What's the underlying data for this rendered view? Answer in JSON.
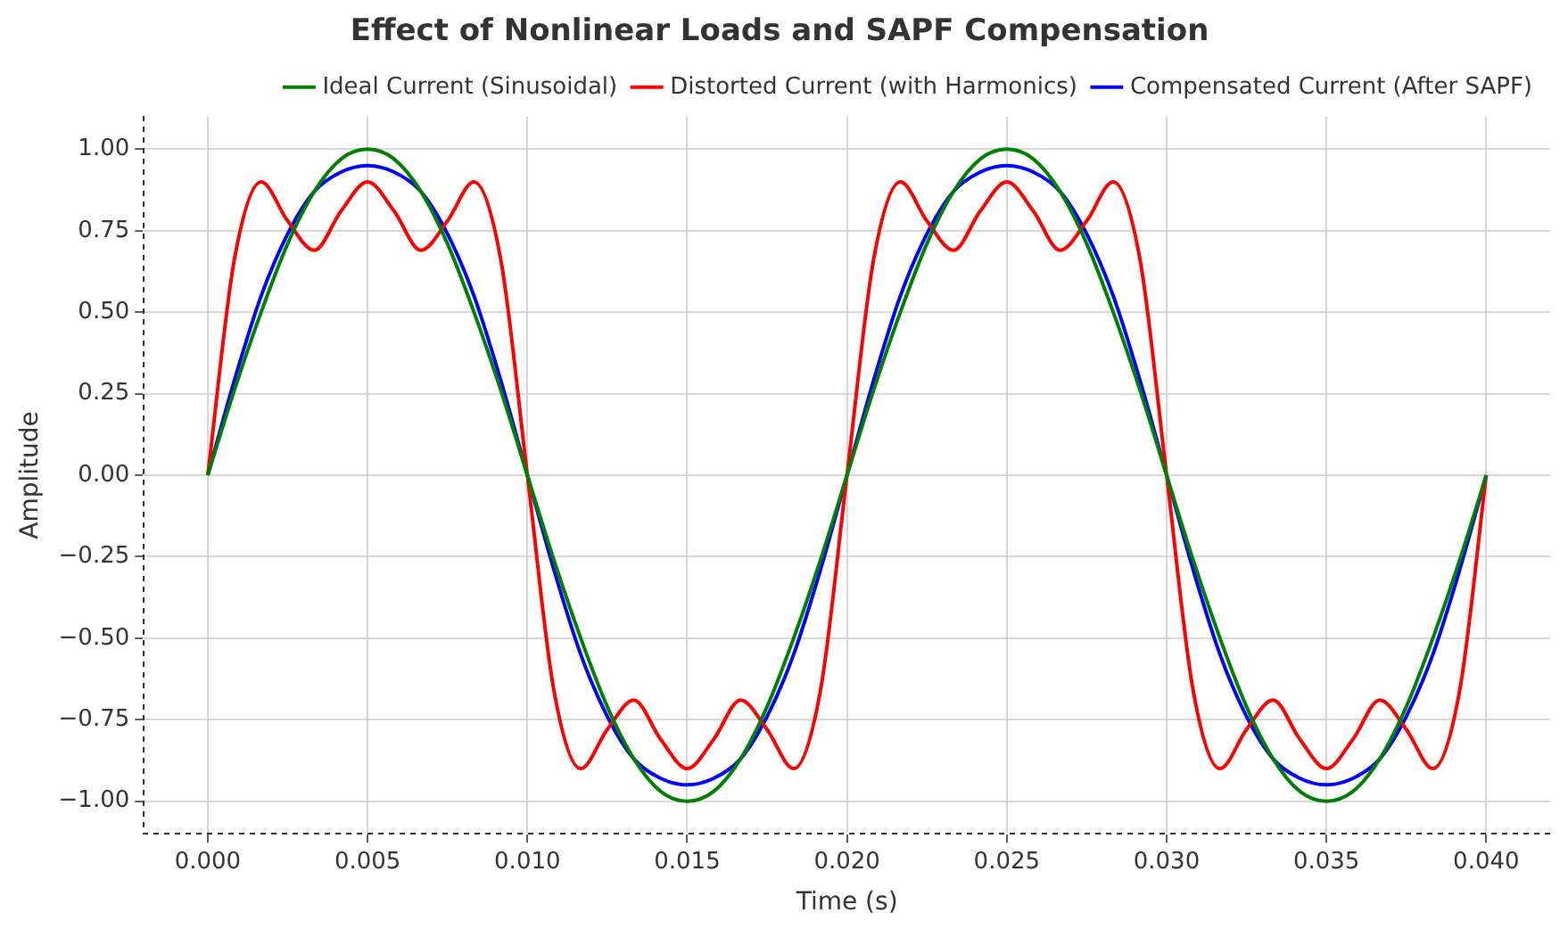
{
  "chart_data": {
    "type": "line",
    "title": "Effect of Nonlinear Loads and SAPF Compensation",
    "xlabel": "Time (s)",
    "ylabel": "Amplitude",
    "x": [
      0,
      0.00083,
      0.00167,
      0.0025,
      0.00333,
      0.00417,
      0.005,
      0.00583,
      0.00667,
      0.0075,
      0.00833,
      0.00917,
      0.01,
      0.01083,
      0.01167,
      0.0125,
      0.01333,
      0.01417,
      0.015,
      0.01583,
      0.01667,
      0.0175,
      0.01833,
      0.01917,
      0.02,
      0.02083,
      0.02167,
      0.0225,
      0.02333,
      0.02417,
      0.025,
      0.02583,
      0.02667,
      0.0275,
      0.02833,
      0.02917,
      0.03,
      0.03083,
      0.03167,
      0.0325,
      0.03333,
      0.03417,
      0.035,
      0.03583,
      0.03667,
      0.0375,
      0.03833,
      0.03917,
      0.04
    ],
    "series": [
      {
        "name": "Ideal Current (Sinusoidal)",
        "color": "#008000",
        "values": [
          0,
          0.26,
          0.5,
          0.71,
          0.87,
          0.97,
          1,
          0.97,
          0.87,
          0.71,
          0.5,
          0.26,
          0,
          -0.26,
          -0.5,
          -0.71,
          -0.87,
          -0.97,
          -1,
          -0.97,
          -0.87,
          -0.71,
          -0.5,
          -0.26,
          0,
          0.26,
          0.5,
          0.71,
          0.87,
          0.97,
          1,
          0.97,
          0.87,
          0.71,
          0.5,
          0.26,
          0,
          -0.26,
          -0.5,
          -0.71,
          -0.87,
          -0.97,
          -1,
          -0.97,
          -0.87,
          -0.71,
          -0.5,
          -0.26,
          0
        ]
      },
      {
        "name": "Distorted Current (with Harmonics)",
        "color": "#ff0000",
        "values": [
          0,
          0.66,
          0.9,
          0.78,
          0.69,
          0.81,
          0.9,
          0.81,
          0.69,
          0.78,
          0.9,
          0.66,
          0,
          -0.66,
          -0.9,
          -0.78,
          -0.69,
          -0.81,
          -0.9,
          -0.81,
          -0.69,
          -0.78,
          -0.9,
          -0.66,
          0,
          0.66,
          0.9,
          0.78,
          0.69,
          0.81,
          0.9,
          0.81,
          0.69,
          0.78,
          0.9,
          0.66,
          0,
          -0.66,
          -0.9,
          -0.78,
          -0.69,
          -0.81,
          -0.9,
          -0.81,
          -0.69,
          -0.78,
          -0.9,
          -0.66,
          0
        ]
      },
      {
        "name": "Compensated Current (After SAPF)",
        "color": "#0000ff",
        "values": [
          0,
          0.29,
          0.55,
          0.74,
          0.87,
          0.93,
          0.95,
          0.93,
          0.87,
          0.74,
          0.55,
          0.29,
          0,
          -0.29,
          -0.55,
          -0.74,
          -0.87,
          -0.93,
          -0.95,
          -0.93,
          -0.87,
          -0.74,
          -0.55,
          -0.29,
          0,
          0.29,
          0.55,
          0.74,
          0.87,
          0.93,
          0.95,
          0.93,
          0.87,
          0.74,
          0.55,
          0.29,
          0,
          -0.29,
          -0.55,
          -0.74,
          -0.87,
          -0.93,
          -0.95,
          -0.93,
          -0.87,
          -0.74,
          -0.55,
          -0.29,
          0
        ]
      }
    ],
    "xlim": [
      -0.002,
      0.042
    ],
    "xticks": [
      {
        "value": 0,
        "label": "0.000"
      },
      {
        "value": 0.005,
        "label": "0.005"
      },
      {
        "value": 0.01,
        "label": "0.010"
      },
      {
        "value": 0.015,
        "label": "0.015"
      },
      {
        "value": 0.02,
        "label": "0.020"
      },
      {
        "value": 0.025,
        "label": "0.025"
      },
      {
        "value": 0.03,
        "label": "0.030"
      },
      {
        "value": 0.035,
        "label": "0.035"
      },
      {
        "value": 0.04,
        "label": "0.040"
      }
    ],
    "ylim": [
      -1.1,
      1.1
    ],
    "yticks": [
      {
        "value": -1,
        "label": "−1.00"
      },
      {
        "value": -0.75,
        "label": "−0.75"
      },
      {
        "value": -0.5,
        "label": "−0.50"
      },
      {
        "value": -0.25,
        "label": "−0.25"
      },
      {
        "value": 0,
        "label": "0.00"
      },
      {
        "value": 0.25,
        "label": "0.25"
      },
      {
        "value": 0.5,
        "label": "0.50"
      },
      {
        "value": 0.75,
        "label": "0.75"
      },
      {
        "value": 1,
        "label": "1.00"
      }
    ],
    "grid": true,
    "legend": "top right",
    "marker": "none",
    "line_style": "solid"
  }
}
